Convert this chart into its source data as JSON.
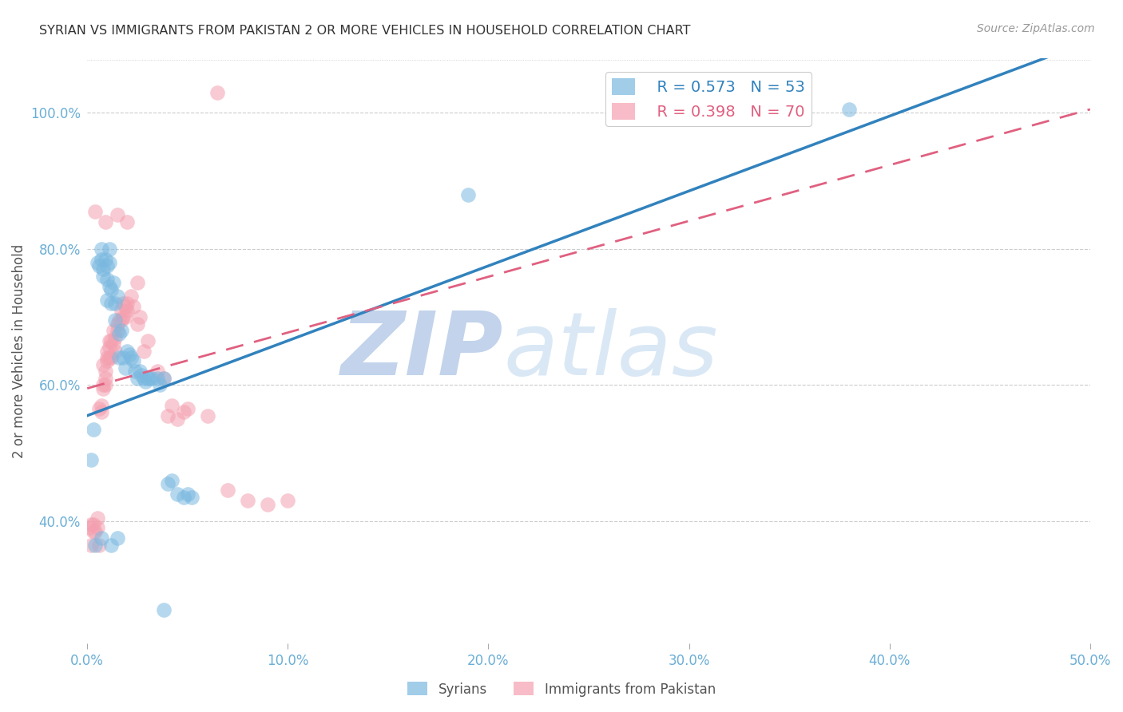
{
  "title": "SYRIAN VS IMMIGRANTS FROM PAKISTAN 2 OR MORE VEHICLES IN HOUSEHOLD CORRELATION CHART",
  "source": "Source: ZipAtlas.com",
  "ylabel": "2 or more Vehicles in Household",
  "xmin": 0.0,
  "xmax": 0.5,
  "ymin": 0.22,
  "ymax": 1.08,
  "yticks": [
    0.4,
    0.6,
    0.8,
    1.0
  ],
  "ytick_labels": [
    "40.0%",
    "60.0%",
    "80.0%",
    "100.0%"
  ],
  "xticks": [
    0.0,
    0.1,
    0.2,
    0.3,
    0.4,
    0.5
  ],
  "xtick_labels": [
    "0.0%",
    "10.0%",
    "20.0%",
    "30.0%",
    "40.0%",
    "50.0%"
  ],
  "legend_syrian_R": 0.573,
  "legend_syrian_N": 53,
  "legend_pakistan_R": 0.398,
  "legend_pakistan_N": 70,
  "watermark_zip": "ZIP",
  "watermark_atlas": "atlas",
  "watermark_color": "#c8d8f0",
  "syrian_color": "#7ab8e0",
  "pakistan_color": "#f4a0b0",
  "syrian_line_color": "#3182bd",
  "pakistan_line_color": "#e06080",
  "bg_color": "#ffffff",
  "grid_color": "#cccccc",
  "title_color": "#333333",
  "tick_color": "#6baed6",
  "syrian_line_intercept": 0.555,
  "syrian_line_slope": 1.1,
  "pakistan_line_intercept": 0.595,
  "pakistan_line_slope": 0.82,
  "syrian_points": [
    [
      0.002,
      0.49
    ],
    [
      0.003,
      0.535
    ],
    [
      0.005,
      0.78
    ],
    [
      0.006,
      0.775
    ],
    [
      0.007,
      0.785
    ],
    [
      0.007,
      0.8
    ],
    [
      0.008,
      0.77
    ],
    [
      0.008,
      0.76
    ],
    [
      0.009,
      0.785
    ],
    [
      0.01,
      0.725
    ],
    [
      0.01,
      0.755
    ],
    [
      0.01,
      0.775
    ],
    [
      0.011,
      0.745
    ],
    [
      0.011,
      0.8
    ],
    [
      0.011,
      0.78
    ],
    [
      0.012,
      0.72
    ],
    [
      0.012,
      0.74
    ],
    [
      0.013,
      0.75
    ],
    [
      0.014,
      0.72
    ],
    [
      0.014,
      0.695
    ],
    [
      0.015,
      0.73
    ],
    [
      0.016,
      0.675
    ],
    [
      0.016,
      0.64
    ],
    [
      0.017,
      0.68
    ],
    [
      0.018,
      0.64
    ],
    [
      0.019,
      0.625
    ],
    [
      0.02,
      0.65
    ],
    [
      0.021,
      0.645
    ],
    [
      0.022,
      0.64
    ],
    [
      0.023,
      0.635
    ],
    [
      0.024,
      0.62
    ],
    [
      0.025,
      0.61
    ],
    [
      0.026,
      0.62
    ],
    [
      0.027,
      0.615
    ],
    [
      0.028,
      0.61
    ],
    [
      0.029,
      0.605
    ],
    [
      0.03,
      0.61
    ],
    [
      0.031,
      0.61
    ],
    [
      0.032,
      0.61
    ],
    [
      0.035,
      0.61
    ],
    [
      0.036,
      0.6
    ],
    [
      0.038,
      0.61
    ],
    [
      0.04,
      0.455
    ],
    [
      0.042,
      0.46
    ],
    [
      0.045,
      0.44
    ],
    [
      0.048,
      0.435
    ],
    [
      0.05,
      0.44
    ],
    [
      0.052,
      0.435
    ],
    [
      0.004,
      0.365
    ],
    [
      0.007,
      0.375
    ],
    [
      0.012,
      0.365
    ],
    [
      0.015,
      0.375
    ],
    [
      0.038,
      0.27
    ],
    [
      0.19,
      0.88
    ],
    [
      0.32,
      1.0
    ],
    [
      0.38,
      1.005
    ]
  ],
  "pakistan_points": [
    [
      0.001,
      0.39
    ],
    [
      0.002,
      0.365
    ],
    [
      0.002,
      0.395
    ],
    [
      0.003,
      0.395
    ],
    [
      0.003,
      0.385
    ],
    [
      0.004,
      0.385
    ],
    [
      0.005,
      0.39
    ],
    [
      0.005,
      0.405
    ],
    [
      0.006,
      0.365
    ],
    [
      0.006,
      0.565
    ],
    [
      0.007,
      0.57
    ],
    [
      0.007,
      0.56
    ],
    [
      0.008,
      0.595
    ],
    [
      0.008,
      0.6
    ],
    [
      0.008,
      0.63
    ],
    [
      0.009,
      0.62
    ],
    [
      0.009,
      0.61
    ],
    [
      0.009,
      0.6
    ],
    [
      0.01,
      0.64
    ],
    [
      0.01,
      0.65
    ],
    [
      0.01,
      0.635
    ],
    [
      0.011,
      0.655
    ],
    [
      0.011,
      0.665
    ],
    [
      0.011,
      0.64
    ],
    [
      0.012,
      0.665
    ],
    [
      0.012,
      0.64
    ],
    [
      0.013,
      0.68
    ],
    [
      0.013,
      0.66
    ],
    [
      0.014,
      0.67
    ],
    [
      0.014,
      0.65
    ],
    [
      0.015,
      0.68
    ],
    [
      0.015,
      0.69
    ],
    [
      0.016,
      0.695
    ],
    [
      0.017,
      0.71
    ],
    [
      0.017,
      0.695
    ],
    [
      0.018,
      0.72
    ],
    [
      0.018,
      0.7
    ],
    [
      0.019,
      0.715
    ],
    [
      0.019,
      0.7
    ],
    [
      0.02,
      0.72
    ],
    [
      0.02,
      0.71
    ],
    [
      0.022,
      0.73
    ],
    [
      0.023,
      0.715
    ],
    [
      0.025,
      0.69
    ],
    [
      0.026,
      0.7
    ],
    [
      0.028,
      0.65
    ],
    [
      0.03,
      0.665
    ],
    [
      0.035,
      0.62
    ],
    [
      0.038,
      0.61
    ],
    [
      0.04,
      0.555
    ],
    [
      0.042,
      0.57
    ],
    [
      0.045,
      0.55
    ],
    [
      0.048,
      0.56
    ],
    [
      0.05,
      0.565
    ],
    [
      0.06,
      0.555
    ],
    [
      0.07,
      0.445
    ],
    [
      0.08,
      0.43
    ],
    [
      0.09,
      0.425
    ],
    [
      0.1,
      0.43
    ],
    [
      0.004,
      0.855
    ],
    [
      0.009,
      0.84
    ],
    [
      0.015,
      0.85
    ],
    [
      0.02,
      0.84
    ],
    [
      0.025,
      0.75
    ],
    [
      0.065,
      1.03
    ]
  ]
}
